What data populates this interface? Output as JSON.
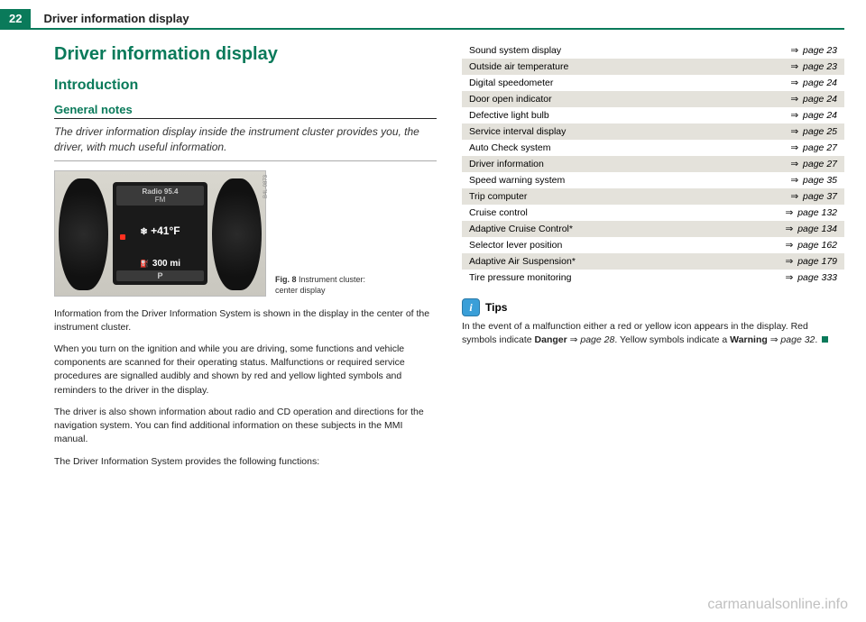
{
  "header": {
    "page_number": "22",
    "running_title": "Driver information display"
  },
  "left": {
    "title": "Driver information display",
    "section": "Introduction",
    "subsection": "General notes",
    "intro": "The driver information display inside the instrument cluster provides you, the driver, with much useful information.",
    "cluster": {
      "station": "Radio 95.4",
      "band": "FM",
      "temp": "+41°F",
      "odometer": "300 mi",
      "gear": "P",
      "img_code": "B4L-0873"
    },
    "fig_label": "Fig. 8",
    "fig_text": "Instrument cluster: center display",
    "p1": "Information from the Driver Information System is shown in the display in the center of the instrument cluster.",
    "p2": "When you turn on the ignition and while you are driving, some functions and vehicle components are scanned for their operating status. Malfunctions or required service procedures are signalled audibly and shown by red and yellow lighted symbols and reminders to the driver in the display.",
    "p3": "The driver is also shown information about radio and CD operation and directions for the navigation system. You can find additional information on these subjects in the MMI manual.",
    "p4": "The Driver Information System provides the following functions:"
  },
  "table": {
    "rows": [
      {
        "label": "Sound system display",
        "page": "page 23",
        "shade": true
      },
      {
        "label": "Outside air temperature",
        "page": "page 23",
        "shade": false
      },
      {
        "label": "Digital speedometer",
        "page": "page 24",
        "shade": true
      },
      {
        "label": "Door open indicator",
        "page": "page 24",
        "shade": false
      },
      {
        "label": "Defective light bulb",
        "page": "page 24",
        "shade": true
      },
      {
        "label": "Service interval display",
        "page": "page 25",
        "shade": false
      },
      {
        "label": "Auto Check system",
        "page": "page 27",
        "shade": true
      },
      {
        "label": "Driver information",
        "page": "page 27",
        "shade": false
      },
      {
        "label": "Speed warning system",
        "page": "page 35",
        "shade": true
      },
      {
        "label": "Trip computer",
        "page": "page 37",
        "shade": false
      },
      {
        "label": "Cruise control",
        "page": "page 132",
        "shade": true
      },
      {
        "label": "Adaptive Cruise Control*",
        "page": "page 134",
        "shade": false
      },
      {
        "label": "Selector lever position",
        "page": "page 162",
        "shade": true
      },
      {
        "label": "Adaptive Air Suspension*",
        "page": "page 179",
        "shade": false
      },
      {
        "label": "Tire pressure monitoring",
        "page": "page 333",
        "shade": true
      }
    ],
    "arrow": "⇒"
  },
  "tips": {
    "heading": "Tips",
    "text_a": "In the event of a malfunction either a red or yellow icon appears in the display. Red symbols indicate ",
    "danger": "Danger",
    "text_b": " ⇒ ",
    "page_a": "page 28",
    "text_c": ". Yellow symbols indicate a ",
    "warning": "Warning",
    "text_d": " ⇒ ",
    "page_b": "page 32",
    "text_e": ". "
  },
  "watermark": "carmanualsonline.info"
}
